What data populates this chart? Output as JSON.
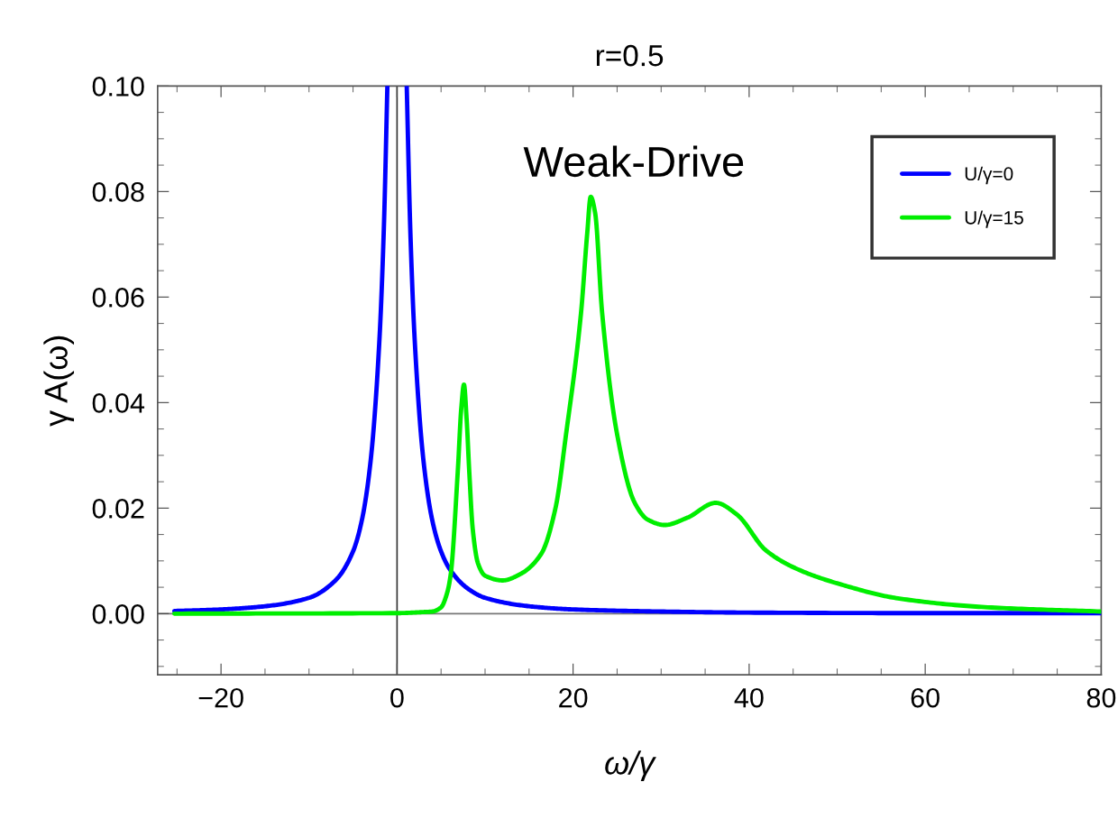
{
  "chart_data": {
    "type": "line",
    "title": "r=0.5",
    "xlabel": "ω/γ",
    "ylabel": "γ A(ω)",
    "annotations": [
      "Weak-Drive"
    ],
    "xlim": [
      -27.2,
      80
    ],
    "xticks": [
      -20,
      0,
      20,
      40,
      60,
      80
    ],
    "ylim": [
      -0.0116,
      0.1
    ],
    "yticks": [
      {
        "value": 0,
        "label": "0.00"
      },
      {
        "value": 0.02,
        "label": "0.02"
      },
      {
        "value": 0.04,
        "label": "0.04"
      },
      {
        "value": 0.06,
        "label": "0.06"
      },
      {
        "value": 0.08,
        "label": "0.08"
      },
      {
        "value": 0.1,
        "label": "0.10"
      }
    ],
    "ref_lines": [
      {
        "axis": "x",
        "value": 0,
        "color": "#333333"
      },
      {
        "axis": "y",
        "value": 0,
        "color": "#777777"
      }
    ],
    "grid": false,
    "legend": "top right",
    "marker": "none",
    "line_style": "solid",
    "series": [
      {
        "name": "U/γ=0",
        "color": "#0000ff",
        "x": [
          -25.3,
          -20,
          -15,
          -10,
          -7,
          -5,
          -4,
          -3,
          -2,
          -1.5,
          -1.1,
          0,
          1.1,
          1.5,
          2,
          3,
          4,
          5,
          6,
          8,
          10,
          15,
          20,
          30,
          40,
          60,
          80
        ],
        "values": [
          0.0005,
          0.0008,
          0.0014,
          0.003,
          0.0063,
          0.0118,
          0.0177,
          0.029,
          0.052,
          0.073,
          0.1,
          null,
          0.1,
          0.073,
          0.052,
          0.029,
          0.0177,
          0.0118,
          0.0084,
          0.0048,
          0.003,
          0.0014,
          0.0008,
          0.0004,
          0.0002,
          0.0001,
          0.0001
        ]
      },
      {
        "name": "U/γ=15",
        "color": "#00ee00",
        "x": [
          -25.3,
          0,
          3,
          4,
          5,
          5.7,
          6.1,
          6.9,
          7.3,
          7.6,
          7.9,
          8.2,
          8.6,
          9.2,
          10,
          12,
          14,
          16.4,
          18,
          19.2,
          20.9,
          21.6,
          22,
          22.5,
          23.3,
          25,
          27,
          28.5,
          30.4,
          33,
          36.2,
          38.6,
          41.9,
          45.4,
          50.5,
          56.9,
          67.1,
          80
        ],
        "values": [
          0,
          0.0001,
          0.0003,
          0.0004,
          0.0012,
          0.004,
          0.0075,
          0.027,
          0.039,
          0.0434,
          0.037,
          0.027,
          0.016,
          0.0095,
          0.0072,
          0.0063,
          0.0075,
          0.0114,
          0.02,
          0.034,
          0.057,
          0.072,
          0.079,
          0.076,
          0.057,
          0.034,
          0.021,
          0.0178,
          0.0168,
          0.0182,
          0.021,
          0.0188,
          0.012,
          0.0085,
          0.0055,
          0.0029,
          0.0012,
          0.0004
        ]
      }
    ]
  }
}
